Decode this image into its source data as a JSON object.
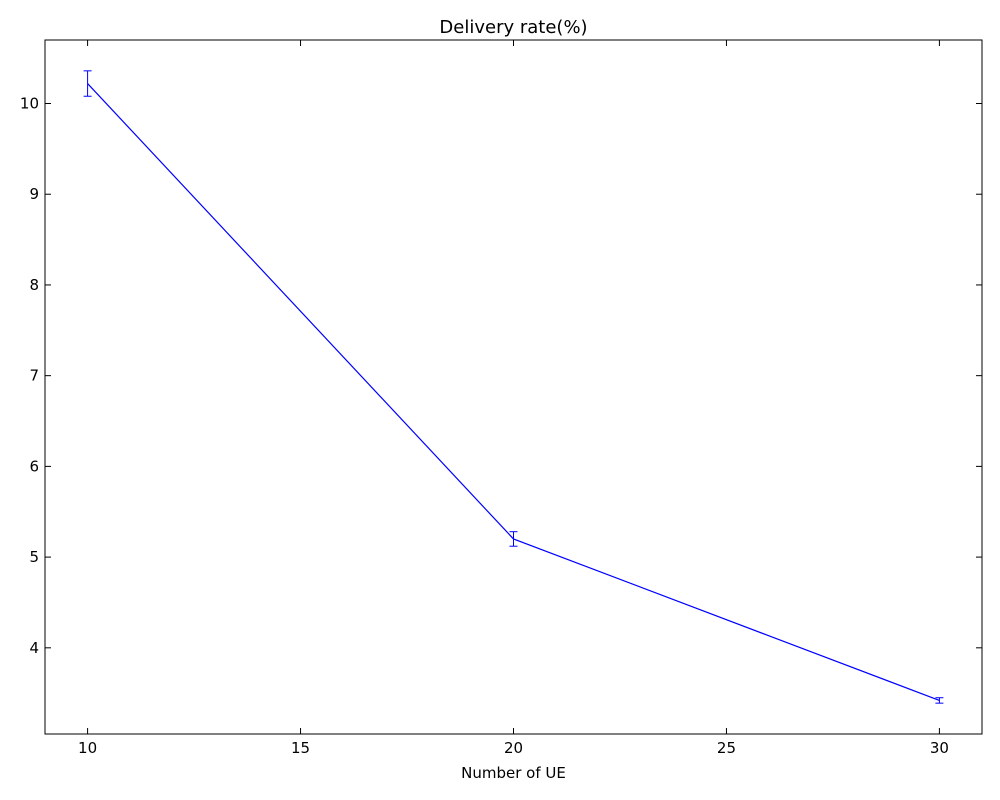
{
  "chart_data": {
    "type": "line",
    "title": "Delivery rate(%)",
    "xlabel": "Number of UE",
    "ylabel": "",
    "xlim": [
      9,
      31
    ],
    "ylim": [
      3.05,
      10.7
    ],
    "x_ticks": [
      10,
      15,
      20,
      25,
      30
    ],
    "y_ticks": [
      4,
      5,
      6,
      7,
      8,
      9,
      10
    ],
    "x_tick_labels": [
      "10",
      "15",
      "20",
      "25",
      "30"
    ],
    "y_tick_labels": [
      "4",
      "5",
      "6",
      "7",
      "8",
      "9",
      "10"
    ],
    "grid": false,
    "series": [
      {
        "color": "#0000ff",
        "x": [
          10,
          20,
          30
        ],
        "y": [
          10.22,
          5.2,
          3.42
        ],
        "error": [
          0.14,
          0.08,
          0.03
        ]
      }
    ]
  }
}
